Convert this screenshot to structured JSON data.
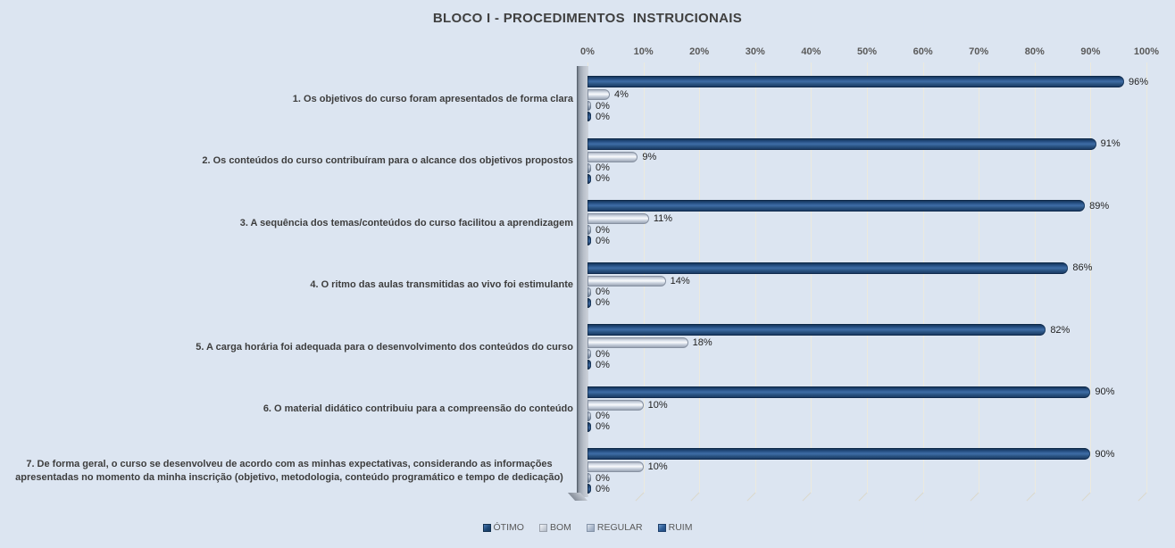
{
  "chart_data": {
    "type": "bar",
    "orientation": "horizontal",
    "title": "BLOCO I - PROCEDIMENTOS  INSTRUCIONAIS",
    "categories": [
      "1. Os objetivos do curso foram apresentados de forma clara",
      "2. Os conteúdos do curso contribuíram para o alcance dos objetivos propostos",
      "3. A sequência dos temas/conteúdos do curso facilitou a aprendizagem",
      "4. O ritmo das aulas transmitidas ao vivo foi estimulante",
      "5. A carga horária foi adequada para o desenvolvimento dos conteúdos do curso",
      "6. O material didático contribuiu para a compreensão do conteúdo",
      "7. De forma geral, o curso se desenvolveu de acordo com as minhas expectativas, considerando as informações apresentadas no momento da minha inscrição (objetivo, metodologia, conteúdo programático e tempo de dedicação)"
    ],
    "series": [
      {
        "key": "otimo",
        "name": "ÓTIMO",
        "color": "#1F4E79",
        "values": [
          96,
          91,
          89,
          86,
          82,
          90,
          90
        ]
      },
      {
        "key": "bom",
        "name": "BOM",
        "color": "#D9DEE8",
        "values": [
          4,
          9,
          11,
          14,
          18,
          10,
          10
        ]
      },
      {
        "key": "regular",
        "name": "REGULAR",
        "color": "#8E9DB3",
        "values": [
          0,
          0,
          0,
          0,
          0,
          0,
          0
        ]
      },
      {
        "key": "ruim",
        "name": "RUIM",
        "color": "#2E5B94",
        "values": [
          0,
          0,
          0,
          0,
          0,
          0,
          0
        ]
      }
    ],
    "value_label_suffix": "%",
    "x_axis": {
      "min": 0,
      "max": 100,
      "ticks": [
        "0%",
        "10%",
        "20%",
        "30%",
        "40%",
        "50%",
        "60%",
        "70%",
        "80%",
        "90%",
        "100%"
      ]
    },
    "legend": {
      "position": "bottom"
    },
    "grid": true,
    "colors": {
      "background": "#DCE5F1",
      "gridline": "#ECEADE",
      "wall": "#AAB2BD",
      "title_text": "#404040",
      "axis_text": "#595959",
      "category_text": "#3D3D3D",
      "data_label_text": "#1F1F1F"
    }
  }
}
